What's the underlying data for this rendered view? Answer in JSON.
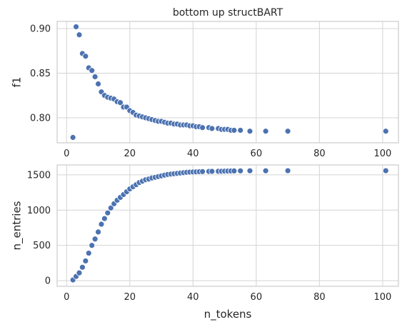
{
  "chart_data": [
    {
      "type": "scatter",
      "title": "bottom up structBART",
      "xlabel": "",
      "ylabel": "f1",
      "xlim": [
        -3,
        105
      ],
      "ylim": [
        0.772,
        0.908
      ],
      "xticks": [
        0,
        20,
        40,
        60,
        80,
        100
      ],
      "yticks": [
        0.8,
        0.85,
        0.9
      ],
      "ytick_labels": [
        "0.80",
        "0.85",
        "0.90"
      ],
      "grid": true,
      "color": "#4c72b0",
      "x": [
        2,
        3,
        4,
        5,
        6,
        7,
        8,
        9,
        10,
        11,
        12,
        13,
        14,
        15,
        16,
        17,
        18,
        19,
        20,
        21,
        22,
        23,
        24,
        25,
        26,
        27,
        28,
        29,
        30,
        31,
        32,
        33,
        34,
        35,
        36,
        37,
        38,
        39,
        40,
        41,
        42,
        43,
        45,
        46,
        48,
        49,
        50,
        51,
        52,
        53,
        55,
        58,
        63,
        70,
        101
      ],
      "y": [
        0.778,
        0.902,
        0.893,
        0.872,
        0.869,
        0.856,
        0.853,
        0.846,
        0.838,
        0.829,
        0.825,
        0.823,
        0.822,
        0.821,
        0.818,
        0.817,
        0.812,
        0.812,
        0.808,
        0.806,
        0.803,
        0.802,
        0.801,
        0.8,
        0.799,
        0.798,
        0.797,
        0.796,
        0.796,
        0.795,
        0.794,
        0.794,
        0.793,
        0.793,
        0.792,
        0.792,
        0.792,
        0.791,
        0.791,
        0.79,
        0.79,
        0.789,
        0.789,
        0.788,
        0.788,
        0.787,
        0.787,
        0.787,
        0.786,
        0.786,
        0.786,
        0.785,
        0.785,
        0.785,
        0.785
      ]
    },
    {
      "type": "scatter",
      "title": "",
      "xlabel": "n_tokens",
      "ylabel": "n_entries",
      "xlim": [
        -3,
        105
      ],
      "ylim": [
        -80,
        1640
      ],
      "xticks": [
        0,
        20,
        40,
        60,
        80,
        100
      ],
      "yticks": [
        0,
        500,
        1000,
        1500
      ],
      "ytick_labels": [
        "0",
        "500",
        "1000",
        "1500"
      ],
      "grid": true,
      "color": "#4c72b0",
      "x": [
        2,
        3,
        4,
        5,
        6,
        7,
        8,
        9,
        10,
        11,
        12,
        13,
        14,
        15,
        16,
        17,
        18,
        19,
        20,
        21,
        22,
        23,
        24,
        25,
        26,
        27,
        28,
        29,
        30,
        31,
        32,
        33,
        34,
        35,
        36,
        37,
        38,
        39,
        40,
        41,
        42,
        43,
        45,
        46,
        48,
        49,
        50,
        51,
        52,
        53,
        55,
        58,
        63,
        70,
        101
      ],
      "y": [
        10,
        60,
        110,
        190,
        280,
        390,
        500,
        590,
        690,
        800,
        880,
        960,
        1030,
        1090,
        1140,
        1180,
        1220,
        1260,
        1300,
        1330,
        1360,
        1390,
        1410,
        1430,
        1440,
        1455,
        1465,
        1475,
        1485,
        1495,
        1505,
        1510,
        1515,
        1520,
        1525,
        1530,
        1535,
        1538,
        1540,
        1542,
        1544,
        1546,
        1548,
        1549,
        1550,
        1551,
        1552,
        1553,
        1554,
        1555,
        1556,
        1557,
        1557,
        1558,
        1558
      ]
    }
  ]
}
